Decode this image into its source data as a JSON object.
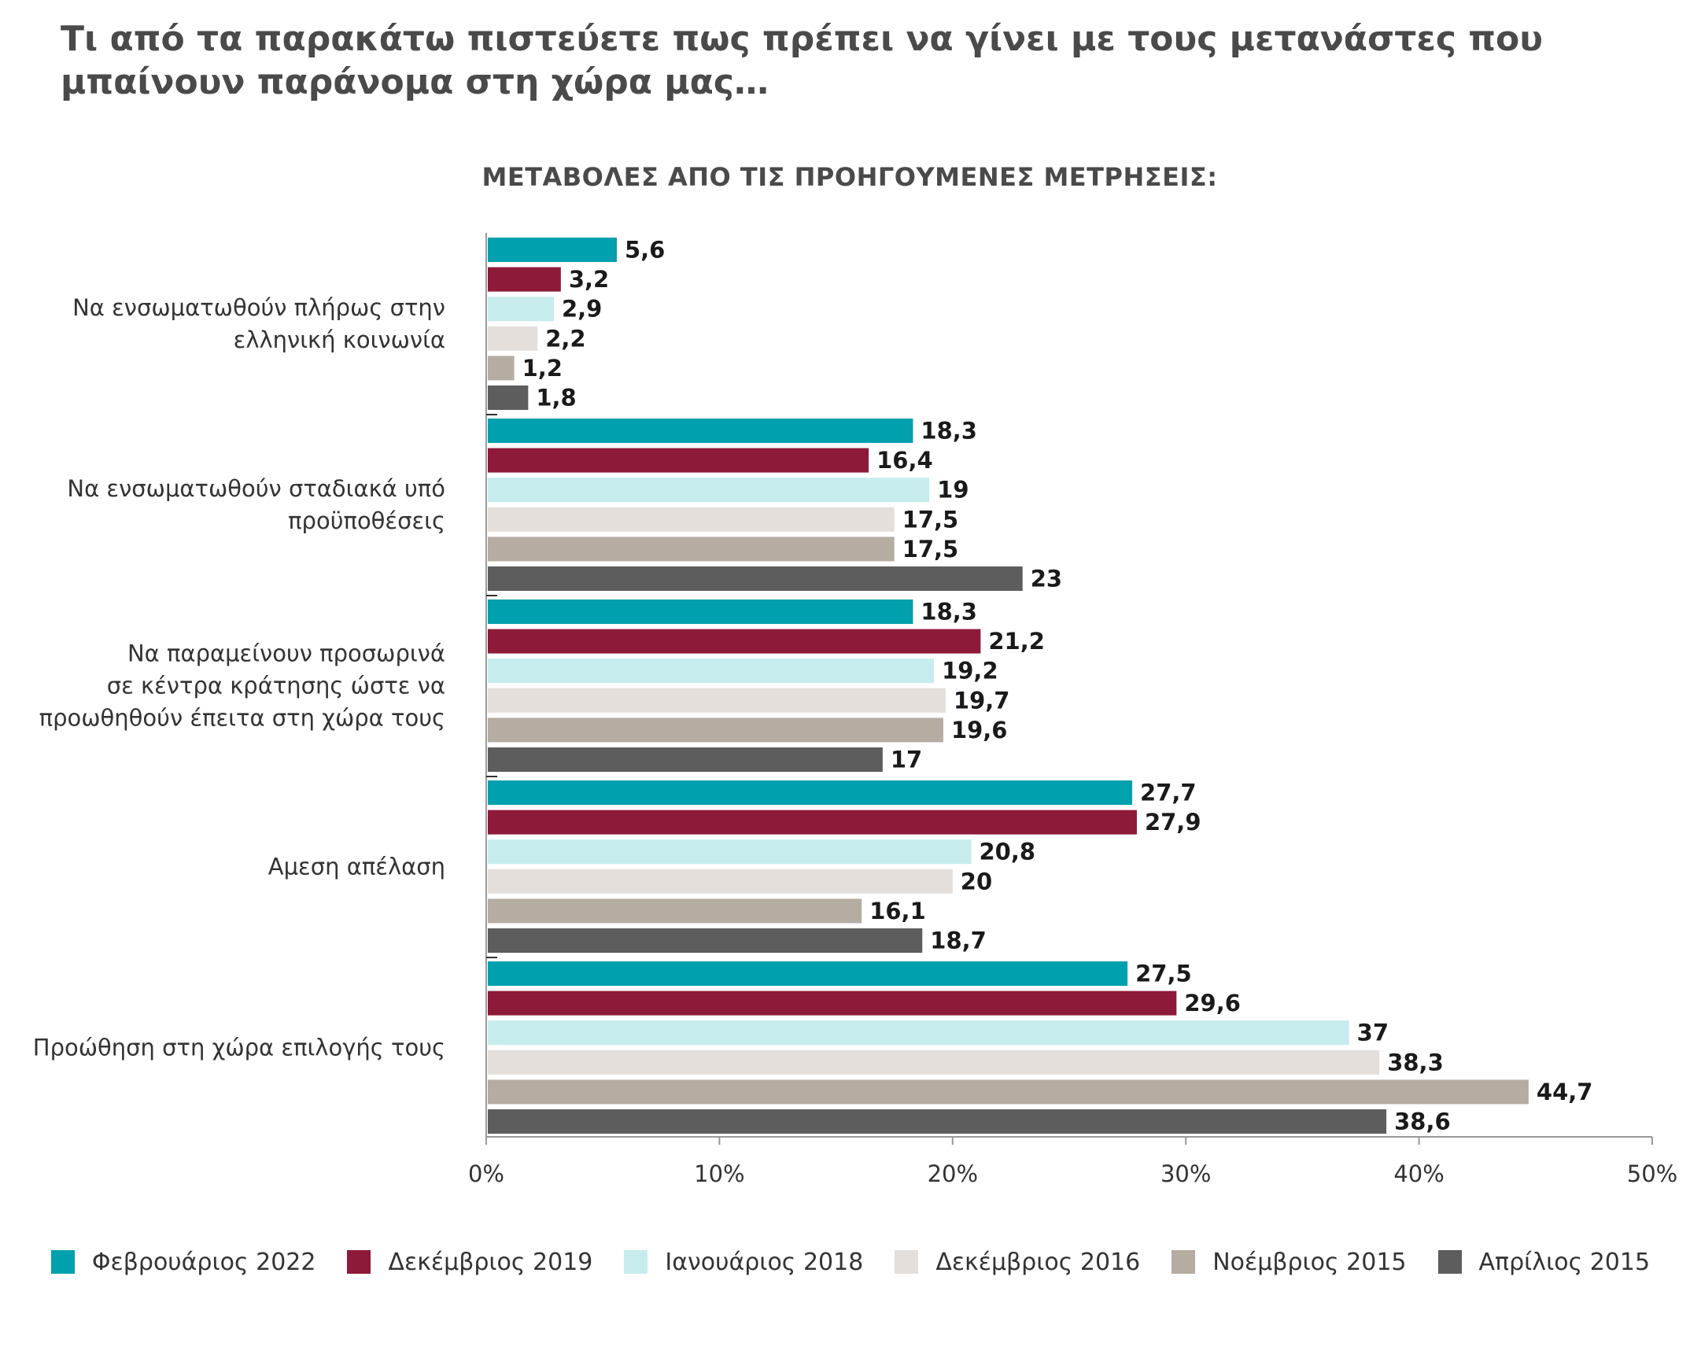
{
  "title": "Τι από τα παρακάτω πιστεύετε πως πρέπει να γίνει με τους μετανάστες που μπαίνουν παράνομα στη χώρα μας…",
  "chart_data": {
    "type": "bar",
    "orientation": "horizontal",
    "title": "ΜΕΤΑΒΟΛΕΣ ΑΠΟ ΤΙΣ ΠΡΟΗΓΟΥΜΕΝΕΣ ΜΕΤΡΗΣΕΙΣ:",
    "categories": [
      [
        "Να ενσωματωθούν πλήρως στην",
        "ελληνική κοινωνία"
      ],
      [
        "Να ενσωματωθούν σταδιακά υπό",
        "προϋποθέσεις"
      ],
      [
        "Να παραμείνουν προσωρινά",
        "σε κέντρα κράτησης ώστε να",
        "προωθηθούν έπειτα στη χώρα τους"
      ],
      [
        "Αμεση απέλαση"
      ],
      [
        "Προώθηση στη χώρα επιλογής τους"
      ]
    ],
    "series": [
      {
        "name": "Φεβρουάριος 2022",
        "color": "#00a0ae",
        "values": [
          5.6,
          18.3,
          18.3,
          27.7,
          27.5
        ],
        "labels": [
          "5,6",
          "18,3",
          "18,3",
          "27,7",
          "27,5"
        ]
      },
      {
        "name": "Δεκέμβριος 2019",
        "color": "#8e1a3a",
        "values": [
          3.2,
          16.4,
          21.2,
          27.9,
          29.6
        ],
        "labels": [
          "3,2",
          "16,4",
          "21,2",
          "27,9",
          "29,6"
        ]
      },
      {
        "name": "Ιανουάριος 2018",
        "color": "#c7ecee",
        "values": [
          2.9,
          19,
          19.2,
          20.8,
          37
        ],
        "labels": [
          "2,9",
          "19",
          "19,2",
          "20,8",
          "37"
        ]
      },
      {
        "name": "Δεκέμβριος 2016",
        "color": "#e4dfdb",
        "values": [
          2.2,
          17.5,
          19.7,
          20,
          38.3
        ],
        "labels": [
          "2,2",
          "17,5",
          "19,7",
          "20",
          "38,3"
        ]
      },
      {
        "name": "Νοέμβριος 2015",
        "color": "#b5aca2",
        "values": [
          1.2,
          17.5,
          19.6,
          16.1,
          44.7
        ],
        "labels": [
          "1,2",
          "17,5",
          "19,6",
          "16,1",
          "44,7"
        ]
      },
      {
        "name": "Απρίλιος 2015",
        "color": "#5d5d5d",
        "values": [
          1.8,
          23,
          17,
          18.7,
          38.6
        ],
        "labels": [
          "1,8",
          "23",
          "17",
          "18,7",
          "38,6"
        ]
      }
    ],
    "xlim": [
      0,
      50
    ],
    "xticks": [
      0,
      10,
      20,
      30,
      40,
      50
    ],
    "xtick_labels": [
      "0%",
      "10%",
      "20%",
      "30%",
      "40%",
      "50%"
    ],
    "legend_position": "bottom",
    "grid": false
  }
}
